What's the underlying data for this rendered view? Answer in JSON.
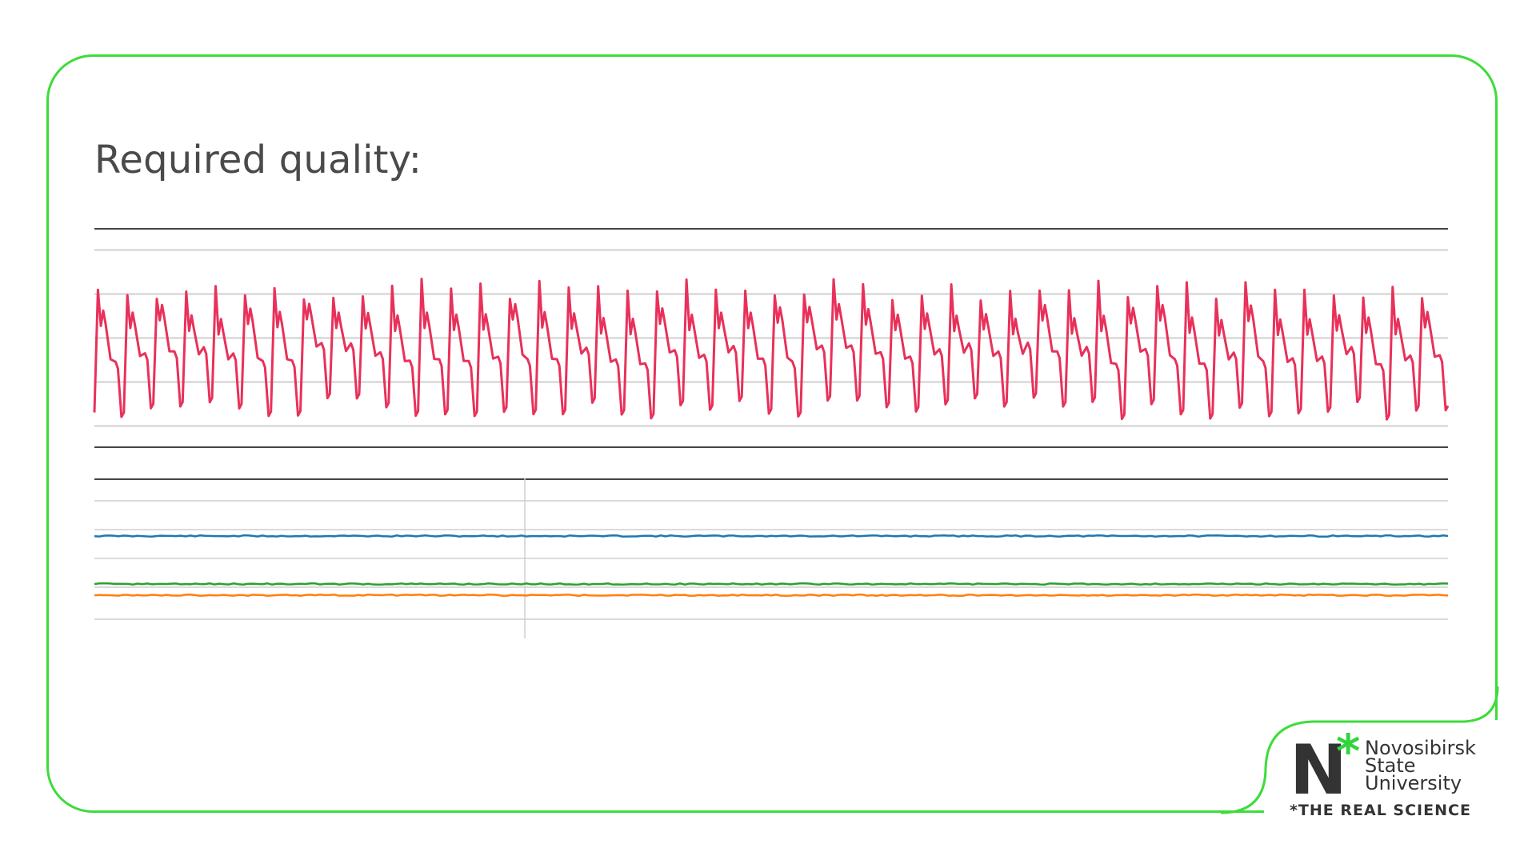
{
  "slide": {
    "title": "Required quality:"
  },
  "logo": {
    "mark_letter": "N",
    "mark_star": "*",
    "name_lines": [
      "Novosibirsk",
      "State",
      "University"
    ],
    "tagline": "*THE REAL SCIENCE"
  },
  "colors": {
    "frame": "#3ddc3a",
    "ecg": "#e8315a",
    "series_blue": "#1f77b4",
    "series_green": "#2ca02c",
    "series_orange": "#ff7f0e",
    "grid": "#cfcfcf",
    "axis": "#444444"
  },
  "chart_data": [
    {
      "type": "line",
      "title": "",
      "xlabel": "",
      "ylabel": "",
      "grid": true,
      "legend": "none",
      "cycles": 46,
      "series": [
        {
          "color": "#e8315a",
          "waveform": "periodic sawtooth-like signal with sharp upstroke, small secondary notch near the peak and slow decay to the trough",
          "peak_level": 0.72,
          "notch_level": 0.6,
          "trough_level": 0.18
        }
      ]
    },
    {
      "type": "line",
      "title": "",
      "xlabel": "",
      "ylabel": "",
      "grid": true,
      "legend": "none",
      "series": [
        {
          "color": "#1f77b4",
          "level": 0.64
        },
        {
          "color": "#2ca02c",
          "level": 0.34
        },
        {
          "color": "#ff7f0e",
          "level": 0.27
        }
      ]
    }
  ]
}
